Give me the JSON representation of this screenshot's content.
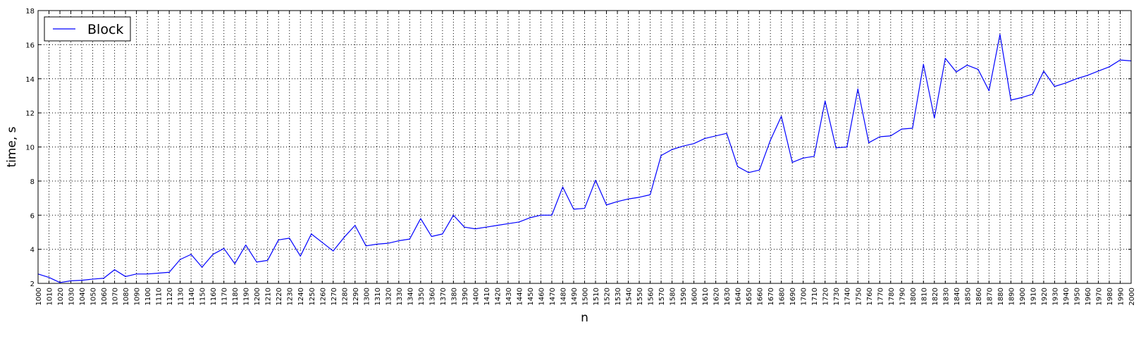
{
  "chart_data": {
    "type": "line",
    "title": "",
    "xlabel": "n",
    "ylabel": "time, s",
    "xlim": [
      1000,
      2000
    ],
    "ylim": [
      2,
      18
    ],
    "grid": true,
    "legend": {
      "location": "upper left"
    },
    "x_ticks": [
      1000,
      1010,
      1020,
      1030,
      1040,
      1050,
      1060,
      1070,
      1080,
      1090,
      1100,
      1110,
      1120,
      1130,
      1140,
      1150,
      1160,
      1170,
      1180,
      1190,
      1200,
      1210,
      1220,
      1230,
      1240,
      1250,
      1260,
      1270,
      1280,
      1290,
      1300,
      1310,
      1320,
      1330,
      1340,
      1350,
      1360,
      1370,
      1380,
      1390,
      1400,
      1410,
      1420,
      1430,
      1440,
      1450,
      1460,
      1470,
      1480,
      1490,
      1500,
      1510,
      1520,
      1530,
      1540,
      1550,
      1560,
      1570,
      1580,
      1590,
      1600,
      1610,
      1620,
      1630,
      1640,
      1650,
      1660,
      1670,
      1680,
      1690,
      1700,
      1710,
      1720,
      1730,
      1740,
      1750,
      1760,
      1770,
      1780,
      1790,
      1800,
      1810,
      1820,
      1830,
      1840,
      1850,
      1860,
      1870,
      1880,
      1890,
      1900,
      1910,
      1920,
      1930,
      1940,
      1950,
      1960,
      1970,
      1980,
      1990,
      2000
    ],
    "y_ticks": [
      2,
      4,
      6,
      8,
      10,
      12,
      14,
      16,
      18
    ],
    "x": [
      1000,
      1010,
      1020,
      1030,
      1040,
      1050,
      1060,
      1070,
      1080,
      1090,
      1100,
      1110,
      1120,
      1130,
      1140,
      1150,
      1160,
      1170,
      1180,
      1190,
      1200,
      1210,
      1220,
      1230,
      1240,
      1250,
      1260,
      1270,
      1280,
      1290,
      1300,
      1310,
      1320,
      1330,
      1340,
      1350,
      1360,
      1370,
      1380,
      1390,
      1400,
      1410,
      1420,
      1430,
      1440,
      1450,
      1460,
      1470,
      1480,
      1490,
      1500,
      1510,
      1520,
      1530,
      1540,
      1550,
      1560,
      1570,
      1580,
      1590,
      1600,
      1610,
      1620,
      1630,
      1640,
      1650,
      1660,
      1670,
      1680,
      1690,
      1700,
      1710,
      1720,
      1730,
      1740,
      1750,
      1760,
      1770,
      1780,
      1790,
      1800,
      1810,
      1820,
      1830,
      1840,
      1850,
      1860,
      1870,
      1880,
      1890,
      1900,
      1910,
      1920,
      1930,
      1940,
      1950,
      1960,
      1970,
      1980,
      1990,
      2000
    ],
    "series": [
      {
        "name": "Block",
        "color": "#0000ff",
        "values": [
          2.55,
          2.35,
          2.05,
          2.15,
          2.18,
          2.25,
          2.3,
          2.8,
          2.4,
          2.55,
          2.55,
          2.6,
          2.65,
          3.4,
          3.7,
          2.95,
          3.7,
          4.05,
          3.15,
          4.25,
          3.25,
          3.35,
          4.55,
          4.65,
          3.6,
          4.9,
          4.4,
          3.9,
          4.7,
          5.4,
          4.2,
          4.3,
          4.35,
          4.5,
          4.6,
          5.8,
          4.75,
          4.9,
          6.0,
          5.3,
          5.2,
          5.3,
          5.4,
          5.5,
          5.6,
          5.85,
          6.0,
          6.0,
          7.65,
          6.35,
          6.4,
          8.05,
          6.6,
          6.8,
          6.95,
          7.05,
          7.2,
          9.5,
          9.85,
          10.05,
          10.2,
          10.5,
          10.65,
          10.8,
          8.85,
          8.5,
          8.65,
          10.4,
          11.8,
          9.1,
          9.35,
          9.45,
          12.7,
          9.95,
          10.0,
          13.4,
          10.25,
          10.6,
          10.65,
          11.05,
          11.1,
          14.85,
          11.7,
          15.2,
          14.4,
          14.8,
          14.55,
          13.3,
          16.6,
          12.75,
          12.9,
          13.1,
          14.45,
          13.55,
          13.75,
          14.0,
          14.2,
          14.45,
          14.7,
          15.1,
          15.05
        ]
      }
    ]
  }
}
